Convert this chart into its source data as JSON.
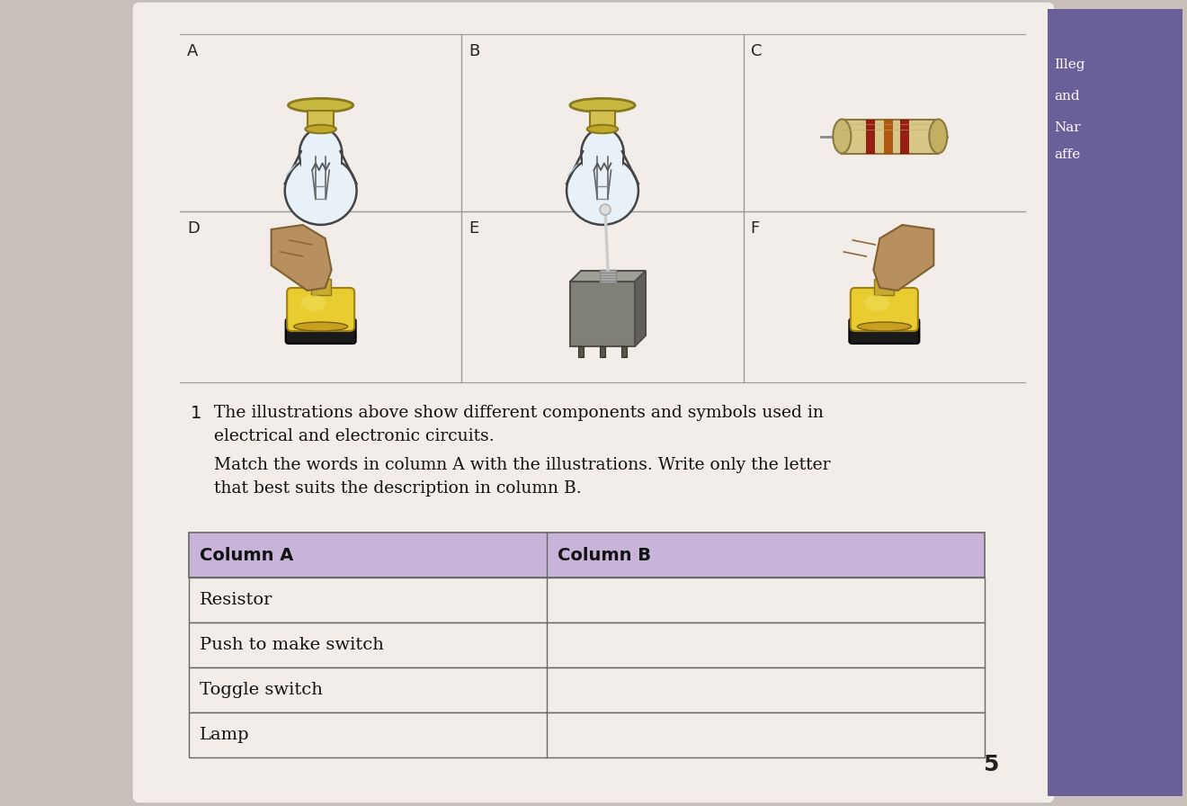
{
  "bg_color": "#c8c0b8",
  "page_bg": "#f2ede8",
  "right_panel_color": "#6b5f9a",
  "title_number": "1",
  "para1_line1": "The illustrations above show different components and symbols used in",
  "para1_line2": "electrical and electronic circuits.",
  "para2_line1": "Match the words in column A with the illustrations. Write only the letter",
  "para2_line2": "that best suits the description in column B.",
  "grid_labels": [
    "A",
    "B",
    "C",
    "D",
    "E",
    "F"
  ],
  "table_header_bg": "#c8b4d8",
  "table_header_col_a": "Column A",
  "table_header_col_b": "Column B",
  "table_rows": [
    "Resistor",
    "Push to make switch",
    "Toggle switch",
    "Lamp"
  ],
  "table_border_color": "#666666",
  "table_row_bg": "#f2ede8",
  "right_text_lines": [
    "Illeg",
    "and",
    "Nar",
    "affe"
  ],
  "page_number": "5",
  "lamp_base_color": "#d4c060",
  "lamp_base_dark": "#a08828",
  "lamp_glass_color": "#ddeeff",
  "lamp_glass_edge": "#555555",
  "resistor_body": "#d8c890",
  "resistor_dark": "#a08840",
  "resistor_band1": "#8b0000",
  "resistor_band2": "#cc6600",
  "push_base_color": "#d4b820",
  "push_base_dark": "#907810",
  "push_btn_color": "#e8d050",
  "push_hand_color": "#b08858",
  "toggle_box_color": "#888880",
  "toggle_box_dark": "#555550",
  "toggle_top_color": "#aaaaaa",
  "toggle_lever": "#cccccc"
}
